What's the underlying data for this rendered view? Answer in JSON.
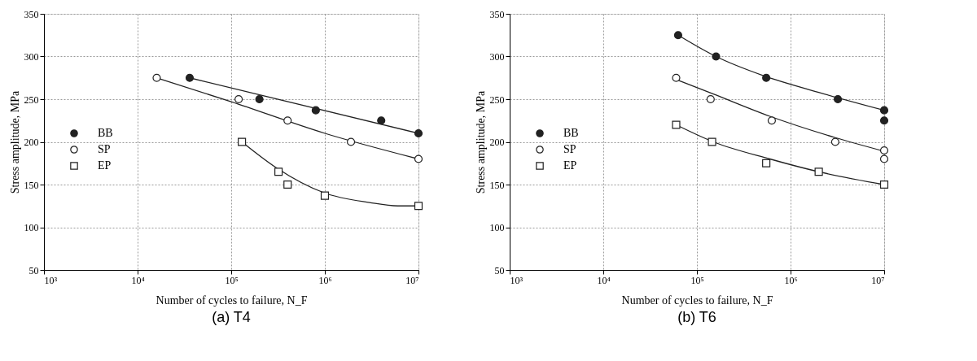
{
  "chart_data": [
    {
      "type": "scatter",
      "title": "(a) T4",
      "xlabel": "Number of cycles to failure, N_F",
      "ylabel": "Stress amplitude, MPa",
      "log": "x",
      "grid": true,
      "legend": "left",
      "xlim": [
        1000,
        10000000
      ],
      "xticks": [
        {
          "value": 1000,
          "label": "10³"
        },
        {
          "value": 10000,
          "label": "10⁴"
        },
        {
          "value": 100000,
          "label": "10⁵"
        },
        {
          "value": 1000000,
          "label": "10⁶"
        },
        {
          "value": 10000000,
          "label": "10⁷"
        }
      ],
      "ylim": [
        50,
        350
      ],
      "yticks": [
        50,
        100,
        150,
        200,
        250,
        300,
        350
      ],
      "series": [
        {
          "name": "BB",
          "marker": "circle",
          "color": "#222222",
          "x": [
            36000,
            200000,
            800000,
            4000000,
            10000000
          ],
          "values": [
            275,
            250,
            237,
            225,
            210
          ]
        },
        {
          "name": "SP",
          "marker": "circle",
          "color": "#222222",
          "x": [
            16000,
            120000,
            400000,
            1900000,
            10000000
          ],
          "values": [
            275,
            250,
            225,
            200,
            180
          ]
        },
        {
          "name": "EP",
          "marker": "square",
          "color": "#222222",
          "x": [
            130000,
            320000,
            400000,
            1000000,
            10000000
          ],
          "values": [
            200,
            165,
            150,
            137,
            125
          ]
        },
        {
          "type": "line",
          "color": "#222222",
          "x": [
            36000,
            10000000
          ],
          "values": [
            275,
            210
          ]
        },
        {
          "type": "line",
          "color": "#222222",
          "x": [
            16000,
            100000,
            1000000,
            10000000
          ],
          "values": [
            275,
            247,
            210,
            180
          ]
        },
        {
          "type": "line",
          "color": "#222222",
          "x": [
            130000,
            300000,
            1000000,
            3000000,
            6000000,
            10000000
          ],
          "values": [
            200,
            170,
            140,
            129,
            125,
            125
          ]
        }
      ]
    },
    {
      "type": "scatter",
      "title": "(b) T6",
      "xlabel": "Number of cycles to failure, N_F",
      "ylabel": "Stress amplitude, MPa",
      "log": "x",
      "grid": true,
      "legend": "left",
      "xlim": [
        1000,
        10000000
      ],
      "xticks": [
        {
          "value": 1000,
          "label": "10³"
        },
        {
          "value": 10000,
          "label": "10⁴"
        },
        {
          "value": 100000,
          "label": "10⁵"
        },
        {
          "value": 1000000,
          "label": "10⁶"
        },
        {
          "value": 10000000,
          "label": "10⁷"
        }
      ],
      "ylim": [
        50,
        350
      ],
      "yticks": [
        50,
        100,
        150,
        200,
        250,
        300,
        350
      ],
      "series": [
        {
          "name": "BB",
          "marker": "circle",
          "color": "#222222",
          "x": [
            63000,
            160000,
            550000,
            3200000,
            10000000,
            10000000
          ],
          "values": [
            325,
            300,
            275,
            250,
            237,
            225
          ]
        },
        {
          "name": "SP",
          "marker": "circle",
          "color": "#222222",
          "x": [
            60000,
            140000,
            630000,
            3000000,
            10000000,
            10000000
          ],
          "values": [
            275,
            250,
            225,
            200,
            190,
            180
          ]
        },
        {
          "name": "EP",
          "marker": "square",
          "color": "#222222",
          "x": [
            60000,
            145000,
            550000,
            2000000,
            10000000
          ],
          "values": [
            220,
            200,
            175,
            165,
            150
          ]
        },
        {
          "type": "line",
          "color": "#222222",
          "x": [
            63000,
            160000,
            500000,
            2000000,
            10000000
          ],
          "values": [
            325,
            300,
            278,
            258,
            237
          ]
        },
        {
          "type": "line",
          "color": "#222222",
          "x": [
            60000,
            150000,
            600000,
            3000000,
            10000000
          ],
          "values": [
            273,
            256,
            230,
            205,
            189
          ]
        },
        {
          "type": "line",
          "color": "#222222",
          "x": [
            60000,
            150000,
            600000,
            2000000,
            10000000
          ],
          "values": [
            220,
            200,
            180,
            165,
            150
          ]
        }
      ]
    }
  ]
}
